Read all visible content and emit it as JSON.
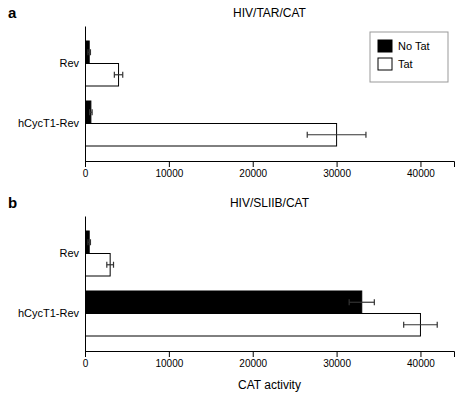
{
  "chart_data": [
    {
      "type": "bar",
      "orientation": "horizontal",
      "title": "HIV/TAR/CAT",
      "annotations": [
        "a"
      ],
      "categories": [
        "hCycT1-Rev",
        "Rev"
      ],
      "series": [
        {
          "name": "No Tat",
          "color": "black",
          "values": [
            700,
            500
          ],
          "errors": [
            150,
            150
          ]
        },
        {
          "name": "Tat",
          "color": "white",
          "values": [
            30000,
            4000
          ],
          "errors": [
            3500,
            500
          ]
        }
      ],
      "xlim": [
        0,
        44000
      ],
      "xticks": [
        0,
        10000,
        20000,
        30000,
        40000
      ],
      "legend": "upper right"
    },
    {
      "type": "bar",
      "orientation": "horizontal",
      "title": "HIV/SLIIB/CAT",
      "annotations": [
        "b"
      ],
      "categories": [
        "hCycT1-Rev",
        "Rev"
      ],
      "series": [
        {
          "name": "No Tat",
          "color": "black",
          "values": [
            33000,
            500
          ],
          "errors": [
            1500,
            150
          ]
        },
        {
          "name": "Tat",
          "color": "white",
          "values": [
            40000,
            3000
          ],
          "errors": [
            2000,
            400
          ]
        }
      ],
      "xlim": [
        0,
        44000
      ],
      "xticks": [
        0,
        10000,
        20000,
        30000,
        40000
      ],
      "xlabel": "CAT activity"
    }
  ]
}
